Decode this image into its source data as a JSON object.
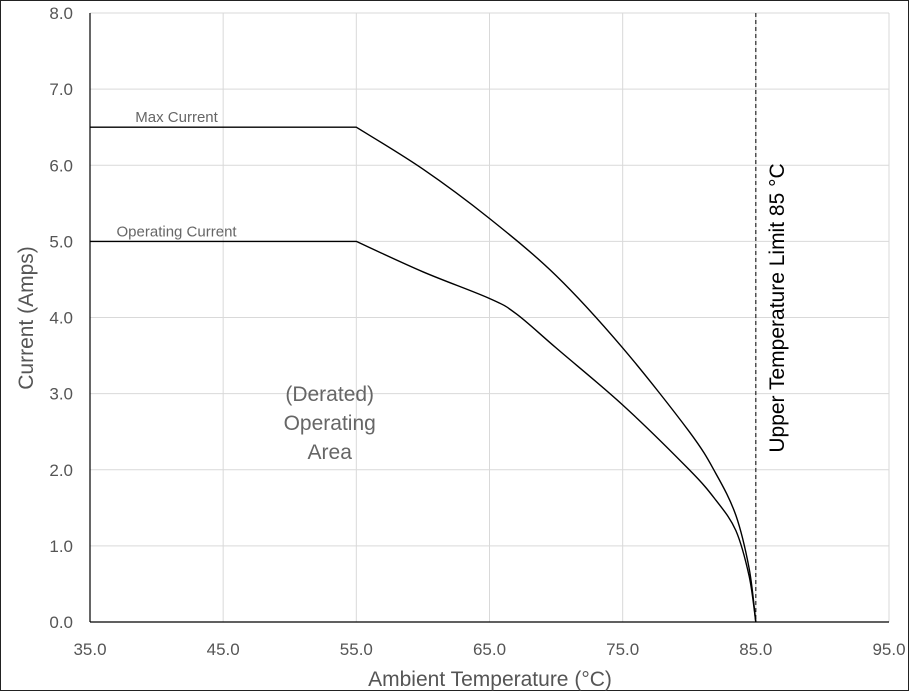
{
  "chart_data": {
    "type": "line",
    "xlabel": "Ambient Temperature (°C)",
    "ylabel": "Current (Amps)",
    "xlim": [
      35,
      95
    ],
    "ylim": [
      0,
      8
    ],
    "x_ticks": [
      "35.0",
      "45.0",
      "55.0",
      "65.0",
      "75.0",
      "85.0",
      "95.0"
    ],
    "y_ticks": [
      "0.0",
      "1.0",
      "2.0",
      "3.0",
      "4.0",
      "5.0",
      "6.0",
      "7.0",
      "8.0"
    ],
    "grid": true,
    "series": [
      {
        "name": "Max Current",
        "color": "#000000",
        "x": [
          35,
          55,
          60,
          65,
          70,
          75,
          80,
          82,
          83.5,
          84.5,
          85
        ],
        "y": [
          6.5,
          6.5,
          5.95,
          5.3,
          4.55,
          3.6,
          2.5,
          1.95,
          1.4,
          0.7,
          0
        ]
      },
      {
        "name": "Operating Current",
        "color": "#000000",
        "x": [
          35,
          55,
          60,
          65,
          67,
          70,
          75,
          80,
          82,
          83.5,
          84.5,
          85
        ],
        "y": [
          5.0,
          5.0,
          4.6,
          4.25,
          4.05,
          3.6,
          2.85,
          2.0,
          1.6,
          1.2,
          0.6,
          0
        ]
      }
    ],
    "annotations": [
      {
        "id": "upper-limit",
        "x": 85,
        "style": "dashed",
        "text": "Upper Temperature Limit 85 °C"
      },
      {
        "id": "operating-area",
        "lines": [
          "(Derated)",
          "Operating",
          "Area"
        ],
        "x": 53,
        "y": 2.9
      }
    ]
  }
}
